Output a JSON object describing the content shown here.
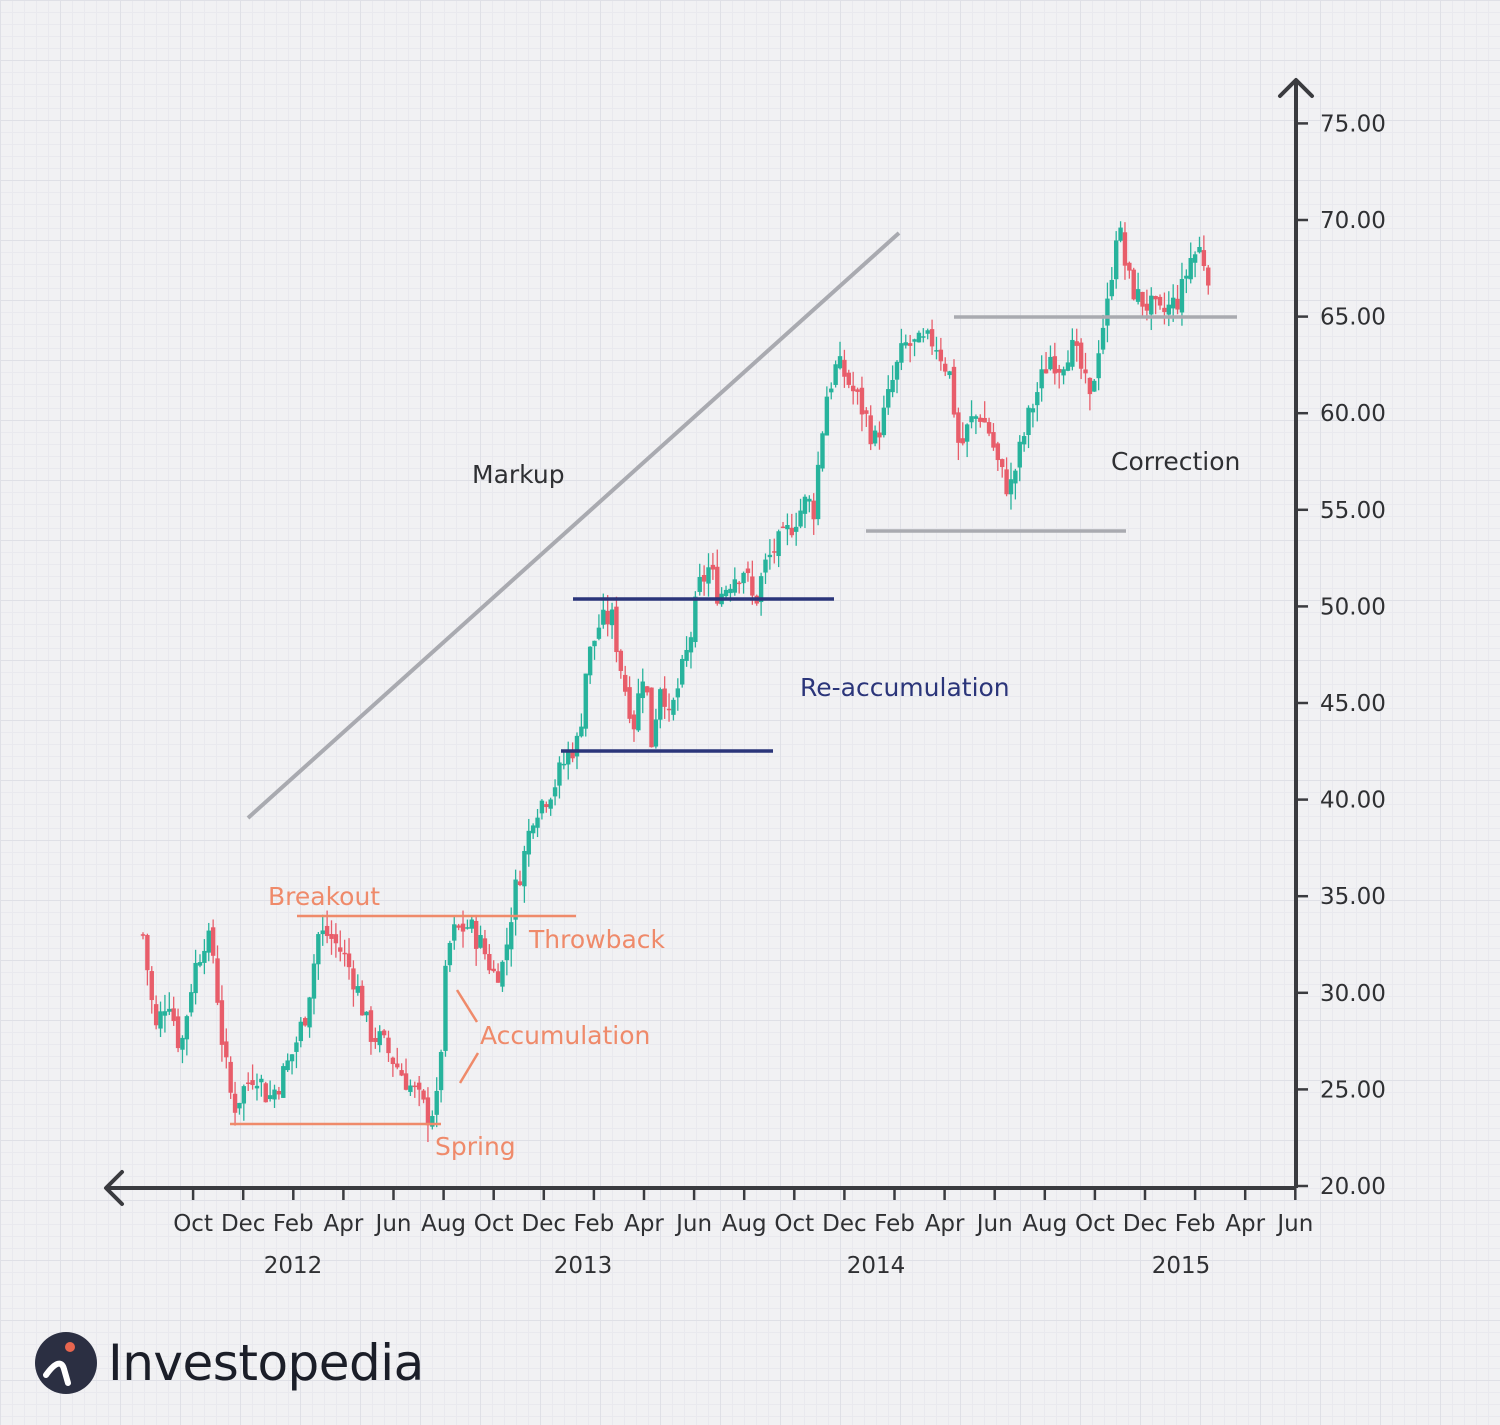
{
  "chart_data": {
    "type": "candlestick",
    "title": "",
    "xlabel": "",
    "ylabel": "",
    "ylim": [
      20,
      75
    ],
    "yticks": [
      "75.00",
      "70.00",
      "65.00",
      "60.00",
      "55.00",
      "50.00",
      "45.00",
      "40.00",
      "35.00",
      "30.00",
      "25.00",
      "20.00"
    ],
    "yvalues": [
      75,
      70,
      65,
      60,
      55,
      50,
      45,
      40,
      35,
      30,
      25,
      20
    ],
    "xticks": [
      "Oct",
      "Dec",
      "Feb",
      "Apr",
      "Jun",
      "Aug",
      "Oct",
      "Dec",
      "Feb",
      "Apr",
      "Jun",
      "Aug",
      "Oct",
      "Dec",
      "Feb",
      "Apr",
      "Jun",
      "Aug",
      "Oct",
      "Dec",
      "Feb",
      "Apr",
      "Jun"
    ],
    "years": [
      "2012",
      "2013",
      "2014",
      "2015"
    ],
    "path": [
      [
        0,
        33
      ],
      [
        0.5,
        28
      ],
      [
        1.0,
        30
      ],
      [
        1.5,
        27
      ],
      [
        2.0,
        31
      ],
      [
        2.5,
        33
      ],
      [
        2.8,
        32
      ],
      [
        3.2,
        27
      ],
      [
        3.6,
        24
      ],
      [
        4.0,
        25
      ],
      [
        4.5,
        26
      ],
      [
        5.0,
        24.5
      ],
      [
        5.5,
        25.5
      ],
      [
        6.0,
        27
      ],
      [
        6.5,
        29
      ],
      [
        7.0,
        33
      ],
      [
        7.4,
        33
      ],
      [
        8.0,
        32
      ],
      [
        8.5,
        30.5
      ],
      [
        9.0,
        28
      ],
      [
        9.5,
        27.5
      ],
      [
        10.0,
        26.5
      ],
      [
        10.5,
        25.5
      ],
      [
        11.0,
        24.5
      ],
      [
        11.4,
        23.6
      ],
      [
        11.8,
        24.5
      ],
      [
        12.0,
        30
      ],
      [
        12.3,
        33
      ],
      [
        13.0,
        33.5
      ],
      [
        13.5,
        32.5
      ],
      [
        14.0,
        31
      ],
      [
        14.4,
        31.5
      ],
      [
        14.8,
        35
      ],
      [
        15.2,
        37
      ],
      [
        15.6,
        39.5
      ],
      [
        16.0,
        40
      ],
      [
        16.5,
        41
      ],
      [
        17.0,
        42.5
      ],
      [
        17.4,
        43
      ],
      [
        17.7,
        47
      ],
      [
        18.2,
        49
      ],
      [
        18.7,
        49.5
      ],
      [
        19.2,
        46
      ],
      [
        19.6,
        44
      ],
      [
        20.0,
        47
      ],
      [
        20.3,
        43
      ],
      [
        20.7,
        46.5
      ],
      [
        21.0,
        44
      ],
      [
        21.4,
        46
      ],
      [
        21.8,
        48
      ],
      [
        22.2,
        51
      ],
      [
        22.6,
        52
      ],
      [
        23.0,
        50.5
      ],
      [
        23.5,
        51.5
      ],
      [
        24.0,
        52
      ],
      [
        24.4,
        50
      ],
      [
        24.8,
        52
      ],
      [
        25.2,
        53
      ],
      [
        25.6,
        53.5
      ],
      [
        26.0,
        54.5
      ],
      [
        26.5,
        55.5
      ],
      [
        26.8,
        55
      ],
      [
        27.0,
        58
      ],
      [
        27.3,
        61
      ],
      [
        27.7,
        62.5
      ],
      [
        28.0,
        62
      ],
      [
        28.4,
        61
      ],
      [
        28.8,
        60
      ],
      [
        29.2,
        58.5
      ],
      [
        29.6,
        60
      ],
      [
        30.0,
        62
      ],
      [
        30.4,
        63.5
      ],
      [
        31.0,
        63.5
      ],
      [
        31.6,
        63.8
      ],
      [
        32.2,
        62
      ],
      [
        32.6,
        58
      ],
      [
        33.0,
        59.5
      ],
      [
        33.4,
        60
      ],
      [
        33.8,
        59
      ],
      [
        34.2,
        57
      ],
      [
        34.6,
        56
      ],
      [
        35.0,
        58
      ],
      [
        35.4,
        60
      ],
      [
        35.8,
        61.5
      ],
      [
        36.2,
        63
      ],
      [
        36.6,
        62.5
      ],
      [
        37.0,
        63.5
      ],
      [
        37.4,
        62.5
      ],
      [
        37.8,
        60.5
      ],
      [
        38.2,
        64
      ],
      [
        38.5,
        65.5
      ],
      [
        38.9,
        70
      ],
      [
        39.3,
        67
      ],
      [
        39.7,
        66
      ],
      [
        40.2,
        65.5
      ],
      [
        40.6,
        65
      ],
      [
        41.0,
        65.5
      ],
      [
        41.4,
        66
      ],
      [
        41.8,
        68
      ],
      [
        42.2,
        68.5
      ],
      [
        42.6,
        67
      ]
    ],
    "annotations": {
      "breakout": "Breakout",
      "throwback": "Throwback",
      "accumulation": "Accumulation",
      "spring": "Spring",
      "markup": "Markup",
      "reaccumulation": "Re-accumulation",
      "correction": "Correction"
    },
    "colors": {
      "up": "#27b39c",
      "down": "#e85d6a",
      "orange": "#ef8a6a",
      "navy": "#2b357a",
      "gray_line": "#a9aab0",
      "axis": "#3a3b3f"
    }
  },
  "brand": {
    "name": "Investopedia"
  }
}
